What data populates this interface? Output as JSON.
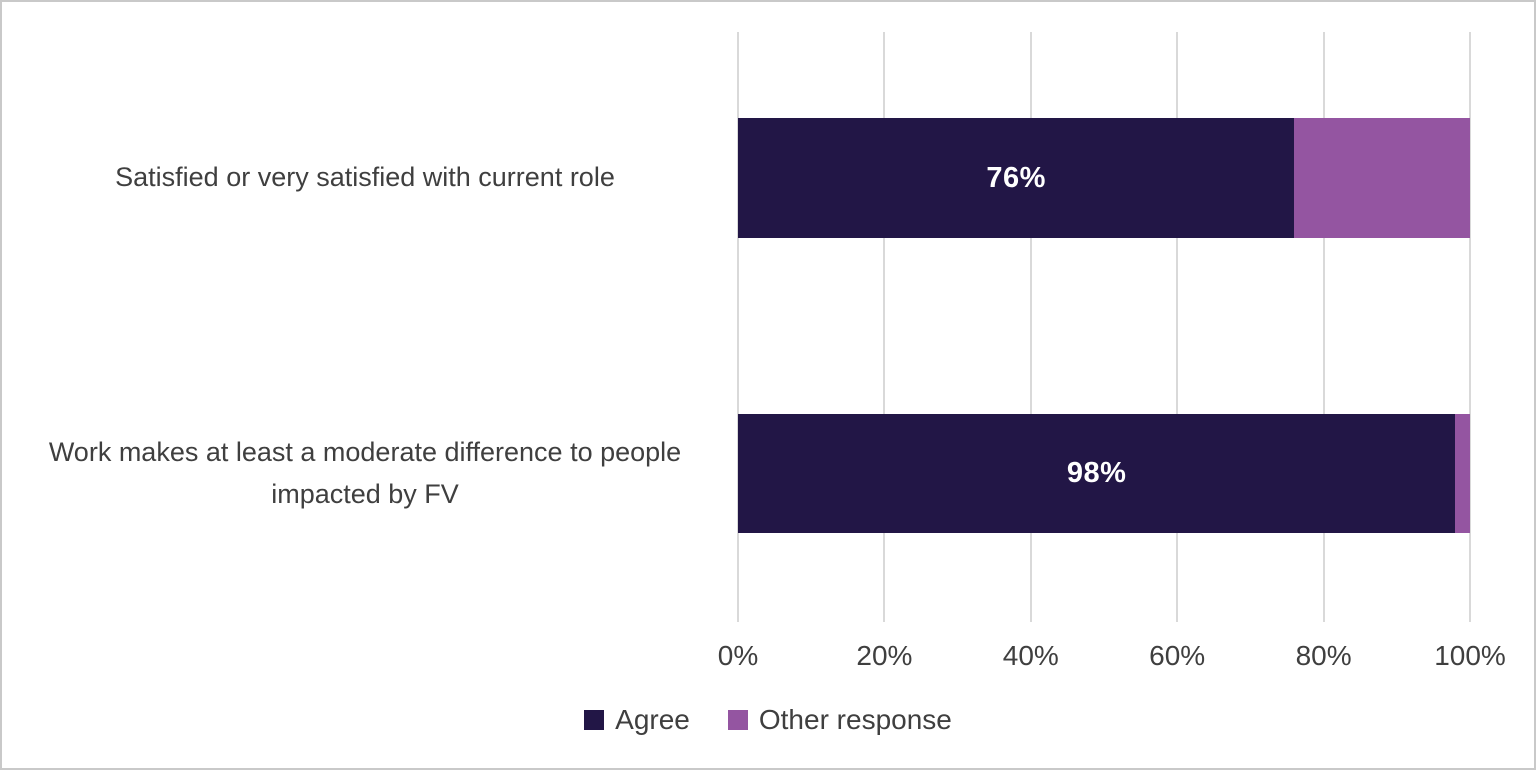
{
  "chart_data": {
    "type": "bar",
    "orientation": "horizontal",
    "stacked": true,
    "title": "",
    "xlabel": "",
    "ylabel": "",
    "xlim": [
      0,
      100
    ],
    "grid": "vertical",
    "gridline_color": "#d9d9d9",
    "legend_position": "bottom",
    "categories": [
      "Satisfied or very satisfied with current role",
      "Work makes at least a moderate difference to people impacted by FV"
    ],
    "series": [
      {
        "name": "Agree",
        "color": "#221646",
        "values": [
          76,
          98
        ]
      },
      {
        "name": "Other response",
        "color": "#9455a1",
        "values": [
          24,
          2
        ]
      }
    ],
    "data_labels": [
      "76%",
      "98%"
    ],
    "x_ticks": [
      "0%",
      "20%",
      "40%",
      "60%",
      "80%",
      "100%"
    ]
  },
  "colors": {
    "agree": "#221646",
    "other_response": "#9455a1",
    "text": "#3f3f3f",
    "grid": "#d9d9d9",
    "frame_border": "#c9c9c9",
    "data_label_text": "#ffffff"
  }
}
